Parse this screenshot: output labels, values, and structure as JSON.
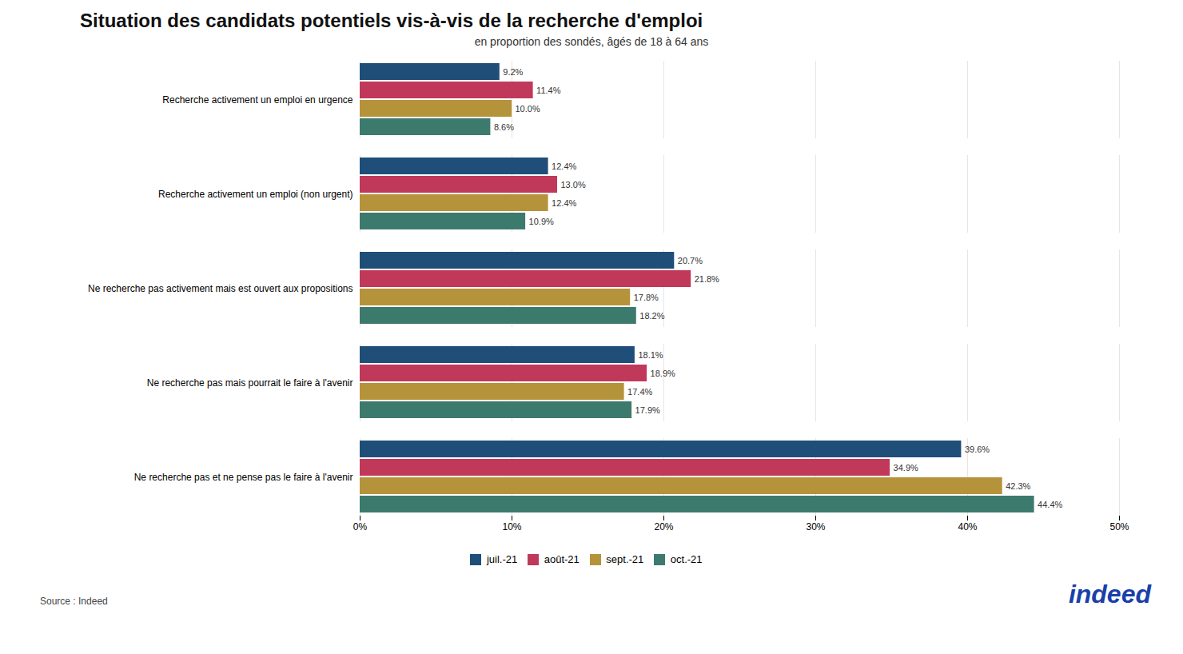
{
  "chart_data": {
    "type": "bar",
    "orientation": "horizontal",
    "title": "Situation des candidats potentiels vis-à-vis de la recherche d'emploi",
    "subtitle": "en proportion des sondés, âgés de 18 à 64 ans",
    "source": "Source : Indeed",
    "annotations": [
      {
        "text": "indeed",
        "color": "#1a3faa"
      }
    ],
    "categories": [
      "Recherche activement un emploi en urgence",
      "Recherche activement un emploi (non urgent)",
      "Ne recherche pas activement mais est ouvert aux propositions",
      "Ne recherche pas mais pourrait le faire à l'avenir",
      "Ne recherche pas et ne pense pas le faire à l'avenir"
    ],
    "series": [
      {
        "name": "juil.-21",
        "color": "#1f4e79",
        "values": [
          9.2,
          12.4,
          20.7,
          18.1,
          39.6
        ],
        "value_labels": [
          "9.2%",
          "12.4%",
          "20.7%",
          "18.1%",
          "39.6%"
        ]
      },
      {
        "name": "août-21",
        "color": "#c0395a",
        "values": [
          11.4,
          13.0,
          21.8,
          18.9,
          34.9
        ],
        "value_labels": [
          "11.4%",
          "13.0%",
          "21.8%",
          "18.9%",
          "34.9%"
        ]
      },
      {
        "name": "sept.-21",
        "color": "#b5933a",
        "values": [
          10.0,
          12.4,
          17.8,
          17.4,
          42.3
        ],
        "value_labels": [
          "10.0%",
          "12.4%",
          "17.8%",
          "17.4%",
          "42.3%"
        ]
      },
      {
        "name": "oct.-21",
        "color": "#3d7a6e",
        "values": [
          8.6,
          10.9,
          18.2,
          17.9,
          44.4
        ],
        "value_labels": [
          "8.6%",
          "10.9%",
          "18.2%",
          "17.9%",
          "44.4%"
        ]
      }
    ],
    "xlim": [
      0,
      50
    ],
    "xticks": [
      {
        "value": 0,
        "label": "0%"
      },
      {
        "value": 10,
        "label": "10%"
      },
      {
        "value": 20,
        "label": "20%"
      },
      {
        "value": 30,
        "label": "30%"
      },
      {
        "value": 40,
        "label": "40%"
      },
      {
        "value": 50,
        "label": "50%"
      }
    ],
    "grid": true,
    "data_labels": true,
    "legend": "bottom"
  }
}
